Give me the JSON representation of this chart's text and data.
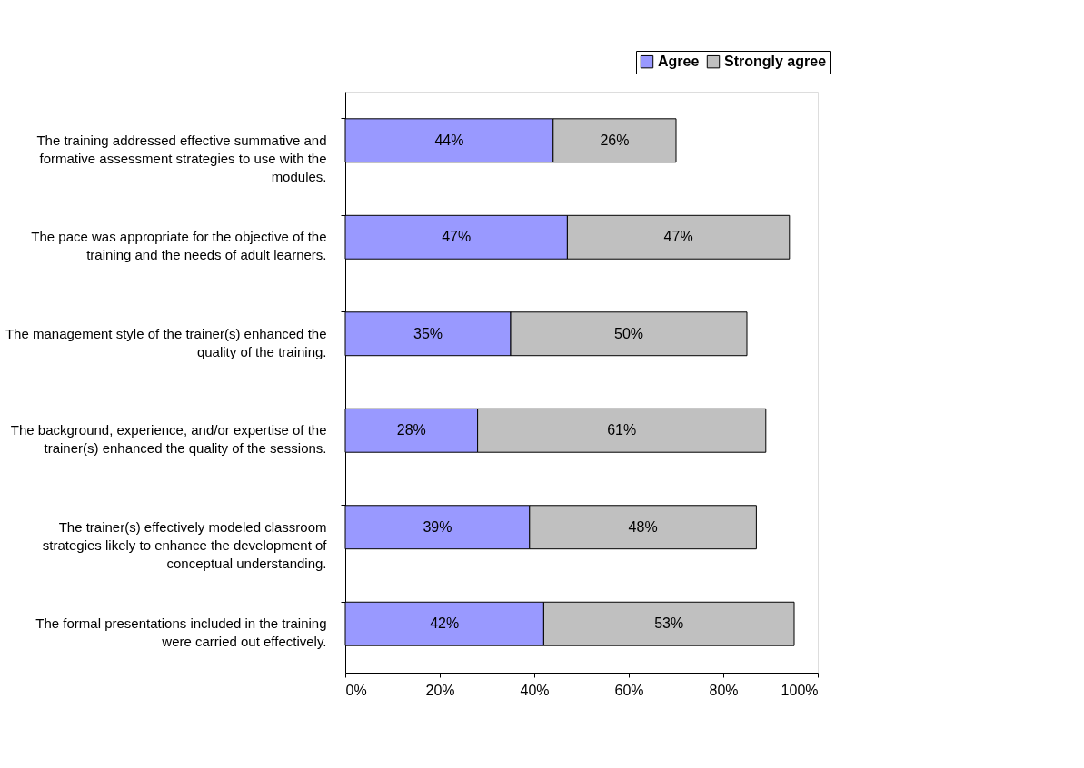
{
  "chart_data": {
    "type": "bar",
    "orientation": "horizontal",
    "stacked": true,
    "legend": "top right",
    "grid": false,
    "categories": [
      "The training addressed effective summative and formative assessment strategies to use with the modules.",
      "The pace was appropriate for the objective of the training and the needs of adult learners.",
      "The management style of the trainer(s) enhanced the quality of the training.",
      "The background, experience, and/or expertise of the trainer(s) enhanced the quality of the sessions.",
      "The trainer(s) effectively modeled classroom strategies likely to enhance the development of conceptual understanding.",
      "The formal presentations included in the training were carried out effectively."
    ],
    "series": [
      {
        "name": "Agree",
        "color": "#9999ff",
        "values": [
          44,
          47,
          35,
          28,
          39,
          42
        ],
        "value_labels": [
          "44%",
          "47%",
          "35%",
          "28%",
          "39%",
          "42%"
        ]
      },
      {
        "name": "Strongly agree",
        "color": "#c0c0c0",
        "values": [
          26,
          47,
          50,
          61,
          48,
          53
        ],
        "value_labels": [
          "26%",
          "47%",
          "50%",
          "61%",
          "48%",
          "53%"
        ]
      }
    ],
    "xlim": [
      0,
      100
    ],
    "xticks": [
      {
        "value": 0,
        "label": "0%"
      },
      {
        "value": 20,
        "label": "20%"
      },
      {
        "value": 40,
        "label": "40%"
      },
      {
        "value": 60,
        "label": "60%"
      },
      {
        "value": 80,
        "label": "80%"
      },
      {
        "value": 100,
        "label": "100%"
      }
    ]
  }
}
